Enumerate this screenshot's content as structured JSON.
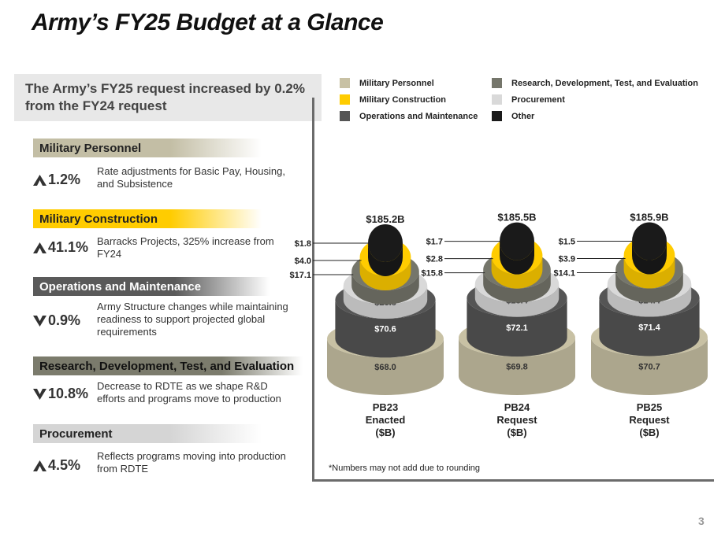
{
  "title": "Army’s FY25 Budget at a Glance",
  "subtitle": "The Army’s FY25 request increased by 0.2% from the FY24 request",
  "categories": [
    {
      "name": "Military Personnel",
      "direction": "up",
      "pct": "1.2%",
      "desc": "Rate adjustments for Basic Pay, Housing, and Subsistence"
    },
    {
      "name": "Military Construction",
      "direction": "up",
      "pct": "41.1%",
      "desc": "Barracks Projects, 325% increase from FY24"
    },
    {
      "name": "Operations and Maintenance",
      "direction": "down",
      "pct": "0.9%",
      "desc": "Army Structure changes while maintaining readiness to support projected global requirements"
    },
    {
      "name": "Research, Development, Test, and Evaluation",
      "direction": "down",
      "pct": "10.8%",
      "desc": "Decrease to RDTE as we shape R&D efforts and programs move to production"
    },
    {
      "name": "Procurement",
      "direction": "up",
      "pct": "4.5%",
      "desc": "Reflects programs moving into production from RDTE"
    }
  ],
  "legend": [
    {
      "label": "Military Personnel",
      "color": "#c8c1a4"
    },
    {
      "label": "Research, Development, Test, and Evaluation",
      "color": "#75766b"
    },
    {
      "label": "Military Construction",
      "color": "#ffcc00"
    },
    {
      "label": "Procurement",
      "color": "#d9d9d9"
    },
    {
      "label": "Operations and Maintenance",
      "color": "#555555"
    },
    {
      "label": "Other",
      "color": "#1a1a1a"
    }
  ],
  "chart_data": {
    "type": "bar",
    "title": "",
    "categories": [
      "PB23 Enacted ($B)",
      "PB24 Request ($B)",
      "PB25 Request ($B)"
    ],
    "category_lines": [
      [
        "PB23",
        "Enacted",
        "($B)"
      ],
      [
        "PB24",
        "Request",
        "($B)"
      ],
      [
        "PB25",
        "Request",
        "($B)"
      ]
    ],
    "totals": [
      "$185.2B",
      "$185.5B",
      "$185.9B"
    ],
    "series": [
      {
        "name": "Military Personnel",
        "values": [
          68.0,
          69.8,
          70.7
        ],
        "labels": [
          "$68.0",
          "$69.8",
          "$70.7"
        ],
        "color": "#c8c1a4"
      },
      {
        "name": "Operations and Maintenance",
        "values": [
          70.6,
          72.1,
          71.4
        ],
        "labels": [
          "$70.6",
          "$72.1",
          "$71.4"
        ],
        "color": "#555555"
      },
      {
        "name": "Procurement",
        "values": [
          23.6,
          23.4,
          24.4
        ],
        "labels": [
          "$23.6",
          "$23.4",
          "$24.4"
        ],
        "color": "#d9d9d9"
      },
      {
        "name": "Research, Development, Test, and Evaluation",
        "values": [
          17.1,
          15.8,
          14.1
        ],
        "labels": [
          "$17.1",
          "$15.8",
          "$14.1"
        ],
        "color": "#75766b"
      },
      {
        "name": "Military Construction",
        "values": [
          4.0,
          2.8,
          3.9
        ],
        "labels": [
          "$4.0",
          "$2.8",
          "$3.9"
        ],
        "color": "#ffcc00"
      },
      {
        "name": "Other",
        "values": [
          1.8,
          1.7,
          1.5
        ],
        "labels": [
          "$1.8",
          "$1.7",
          "$1.5"
        ],
        "color": "#1a1a1a"
      }
    ],
    "legend_position": "top"
  },
  "footnote": "*Numbers may not add due to rounding",
  "page_number": "3"
}
